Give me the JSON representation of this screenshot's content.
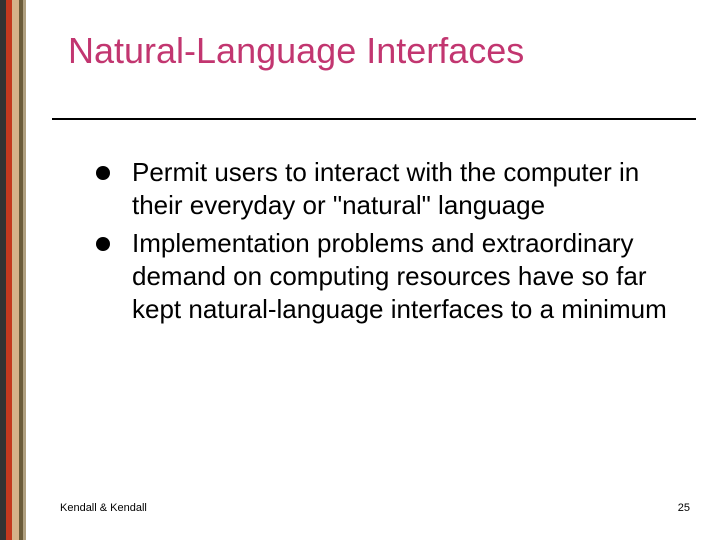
{
  "slide": {
    "title": "Natural-Language Interfaces",
    "title_color": "#c23670",
    "title_fontsize": 36,
    "rule_color": "#000000",
    "bullets": [
      "Permit users to interact with the computer in their everyday or \"natural\" language",
      "Implementation problems and extraordinary demand on computing resources have so far kept natural-language interfaces to a minimum"
    ],
    "body_fontsize": 26,
    "body_color": "#000000",
    "bullet_dot_color": "#000000",
    "footer_left": "Kendall & Kendall",
    "page_number": "25",
    "footer_fontsize": 11,
    "background_color": "#ffffff",
    "accent_bars": [
      "#333333",
      "#c4391f",
      "#d6b28a",
      "#6b5c3a",
      "#b0a080"
    ]
  }
}
